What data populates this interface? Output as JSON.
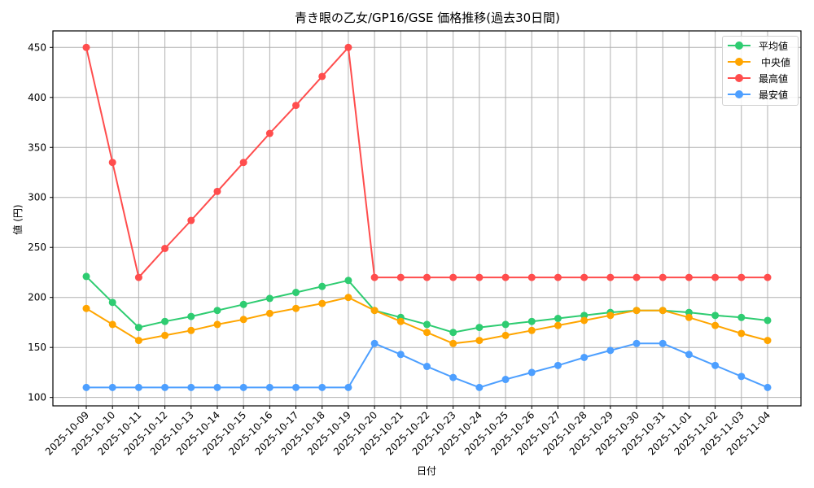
{
  "chart_data": {
    "type": "line",
    "title": "青き眼の乙女/GP16/GSE 価格推移(過去30日間)",
    "xlabel": "日付",
    "ylabel": "値 (円)",
    "ylim": [
      91.6,
      466.5
    ],
    "yticks": [
      100,
      150,
      200,
      250,
      300,
      350,
      400,
      450
    ],
    "grid": true,
    "legend_position": "upper right",
    "x": [
      "2025-10-09",
      "2025-10-10",
      "2025-10-11",
      "2025-10-12",
      "2025-10-13",
      "2025-10-14",
      "2025-10-15",
      "2025-10-16",
      "2025-10-17",
      "2025-10-18",
      "2025-10-19",
      "2025-10-20",
      "2025-10-21",
      "2025-10-22",
      "2025-10-23",
      "2025-10-24",
      "2025-10-25",
      "2025-10-26",
      "2025-10-27",
      "2025-10-28",
      "2025-10-29",
      "2025-10-30",
      "2025-10-31",
      "2025-11-01",
      "2025-11-02",
      "2025-11-03",
      "2025-11-04"
    ],
    "series": [
      {
        "name": "平均値",
        "color": "#2ecc71",
        "values": [
          221,
          195,
          170,
          176,
          181,
          187,
          193,
          199,
          205,
          211,
          217,
          187,
          180,
          173,
          165,
          170,
          173,
          176,
          179,
          182,
          185,
          187,
          187,
          185,
          182,
          180,
          177
        ]
      },
      {
        "name": "中央値",
        "color": "#ffa500",
        "values": [
          189,
          173,
          157,
          162,
          167,
          173,
          178,
          184,
          189,
          194,
          200,
          187,
          176,
          165,
          154,
          157,
          162,
          167,
          172,
          177,
          182,
          187,
          187,
          180,
          172,
          164,
          157
        ]
      },
      {
        "name": "最高値",
        "color": "#ff4d4d",
        "values": [
          450,
          335,
          220,
          249,
          277,
          306,
          335,
          364,
          392,
          421,
          450,
          220,
          220,
          220,
          220,
          220,
          220,
          220,
          220,
          220,
          220,
          220,
          220,
          220,
          220,
          220,
          220
        ]
      },
      {
        "name": "最安値",
        "color": "#4d9fff",
        "values": [
          110,
          110,
          110,
          110,
          110,
          110,
          110,
          110,
          110,
          110,
          110,
          154,
          143,
          131,
          120,
          110,
          118,
          125,
          132,
          140,
          147,
          154,
          154,
          143,
          132,
          121,
          110
        ]
      }
    ]
  }
}
